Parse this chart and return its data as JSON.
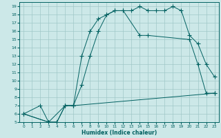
{
  "xlabel": "Humidex (Indice chaleur)",
  "background_color": "#cce8e8",
  "grid_color": "#a0c8c8",
  "line_color": "#006060",
  "xlim": [
    -0.5,
    23.5
  ],
  "ylim": [
    5,
    19.5
  ],
  "xticks": [
    0,
    1,
    2,
    3,
    4,
    5,
    6,
    7,
    8,
    9,
    10,
    11,
    12,
    13,
    14,
    15,
    16,
    17,
    18,
    19,
    20,
    21,
    22,
    23
  ],
  "yticks": [
    5,
    6,
    7,
    8,
    9,
    10,
    11,
    12,
    13,
    14,
    15,
    16,
    17,
    18,
    19
  ],
  "line1_x": [
    0,
    2,
    3,
    4,
    5,
    6,
    7,
    8,
    9,
    10,
    11,
    12,
    13,
    14,
    15,
    16,
    17,
    18,
    19,
    20,
    21,
    22,
    23
  ],
  "line1_y": [
    6,
    7,
    5,
    5,
    7,
    7,
    9.5,
    13,
    16,
    18,
    18.5,
    18.5,
    18.5,
    19,
    18.5,
    18.5,
    18.5,
    19,
    18.5,
    15.5,
    14.5,
    12,
    10.5
  ],
  "line2_x": [
    0,
    3,
    4,
    5,
    6,
    7,
    8,
    9,
    10,
    11,
    12,
    14,
    15,
    20,
    21,
    22,
    23
  ],
  "line2_y": [
    6,
    5,
    5,
    7,
    7,
    13,
    16,
    17.5,
    18,
    18.5,
    18.5,
    15.5,
    15.5,
    15,
    12,
    8.5,
    8.5
  ],
  "line3_x": [
    0,
    3,
    5,
    6,
    23
  ],
  "line3_y": [
    6,
    5,
    7,
    7,
    8.5
  ]
}
